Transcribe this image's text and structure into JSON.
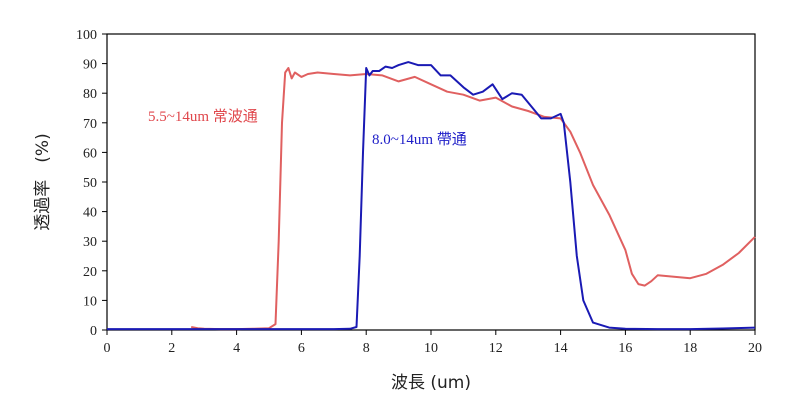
{
  "chart_data": {
    "type": "line",
    "title": "",
    "xlabel": "波長 (um)",
    "ylabel": "透過率　(%)",
    "xlim": [
      0,
      20
    ],
    "ylim": [
      0,
      100
    ],
    "x_ticks": [
      0,
      2,
      4,
      6,
      8,
      10,
      12,
      14,
      16,
      18,
      20
    ],
    "y_ticks": [
      0,
      10,
      20,
      30,
      40,
      50,
      60,
      70,
      80,
      90,
      100
    ],
    "grid": false,
    "annotations": [
      {
        "text": "5.5~14um 常波通",
        "color": "#e0474c"
      },
      {
        "text": "8.0~14um 帶通",
        "color": "#1e1ec8"
      }
    ],
    "series": [
      {
        "color": "#e06060",
        "x": [
          2.6,
          2.8,
          3.0,
          3.5,
          4.0,
          4.5,
          5.0,
          5.2,
          5.3,
          5.4,
          5.5,
          5.6,
          5.7,
          5.8,
          6.0,
          6.2,
          6.5,
          7.0,
          7.5,
          8.0,
          8.5,
          9.0,
          9.5,
          10.0,
          10.5,
          11.0,
          11.5,
          12.0,
          12.5,
          13.0,
          13.5,
          14.0,
          14.3,
          14.6,
          15.0,
          15.5,
          16.0,
          16.2,
          16.4,
          16.6,
          16.8,
          17.0,
          17.5,
          18.0,
          18.5,
          19.0,
          19.5,
          20.0
        ],
        "y": [
          1.0,
          0.6,
          0.4,
          0.3,
          0.3,
          0.4,
          0.6,
          2.0,
          30.0,
          70.0,
          87.0,
          88.5,
          85.0,
          87.0,
          85.5,
          86.5,
          87.0,
          86.5,
          86.0,
          86.5,
          86.0,
          84.0,
          85.5,
          83.0,
          80.5,
          79.5,
          77.5,
          78.5,
          75.5,
          74.0,
          72.0,
          71.5,
          67.0,
          60.0,
          49.0,
          39.0,
          27.0,
          19.0,
          15.5,
          15.0,
          16.5,
          18.5,
          18.0,
          17.5,
          19.0,
          22.0,
          26.0,
          31.5
        ]
      },
      {
        "color": "#1a1ab4",
        "x": [
          0.0,
          2.0,
          4.0,
          6.0,
          7.0,
          7.5,
          7.7,
          7.8,
          7.9,
          8.0,
          8.1,
          8.2,
          8.4,
          8.6,
          8.8,
          9.0,
          9.3,
          9.6,
          10.0,
          10.3,
          10.6,
          11.0,
          11.3,
          11.6,
          11.9,
          12.2,
          12.5,
          12.8,
          13.1,
          13.4,
          13.7,
          14.0,
          14.1,
          14.3,
          14.5,
          14.7,
          15.0,
          15.5,
          16.0,
          17.0,
          18.0,
          19.0,
          20.0
        ],
        "y": [
          0.3,
          0.3,
          0.3,
          0.3,
          0.3,
          0.4,
          1.0,
          25.0,
          60.0,
          88.5,
          86.0,
          87.5,
          87.5,
          89.0,
          88.5,
          89.5,
          90.5,
          89.5,
          89.5,
          86.0,
          86.0,
          82.0,
          79.5,
          80.5,
          83.0,
          78.0,
          80.0,
          79.5,
          75.5,
          71.5,
          71.5,
          73.0,
          70.0,
          50.0,
          25.0,
          10.0,
          2.5,
          0.8,
          0.4,
          0.3,
          0.3,
          0.5,
          0.8
        ]
      }
    ]
  }
}
